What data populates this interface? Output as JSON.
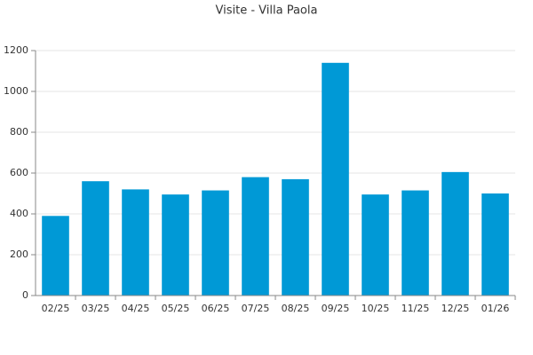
{
  "chart_data": {
    "type": "bar",
    "title": "Visite - Villa Paola",
    "categories": [
      "02/25",
      "03/25",
      "04/25",
      "05/25",
      "06/25",
      "07/25",
      "08/25",
      "09/25",
      "10/25",
      "11/25",
      "12/25",
      "01/26"
    ],
    "values": [
      390,
      560,
      520,
      495,
      515,
      580,
      570,
      1140,
      495,
      515,
      605,
      500
    ],
    "color": "#0099d6",
    "ylim": [
      0,
      1200
    ],
    "yticks": [
      0,
      200,
      400,
      600,
      800,
      1000,
      1200
    ],
    "grid": true
  }
}
